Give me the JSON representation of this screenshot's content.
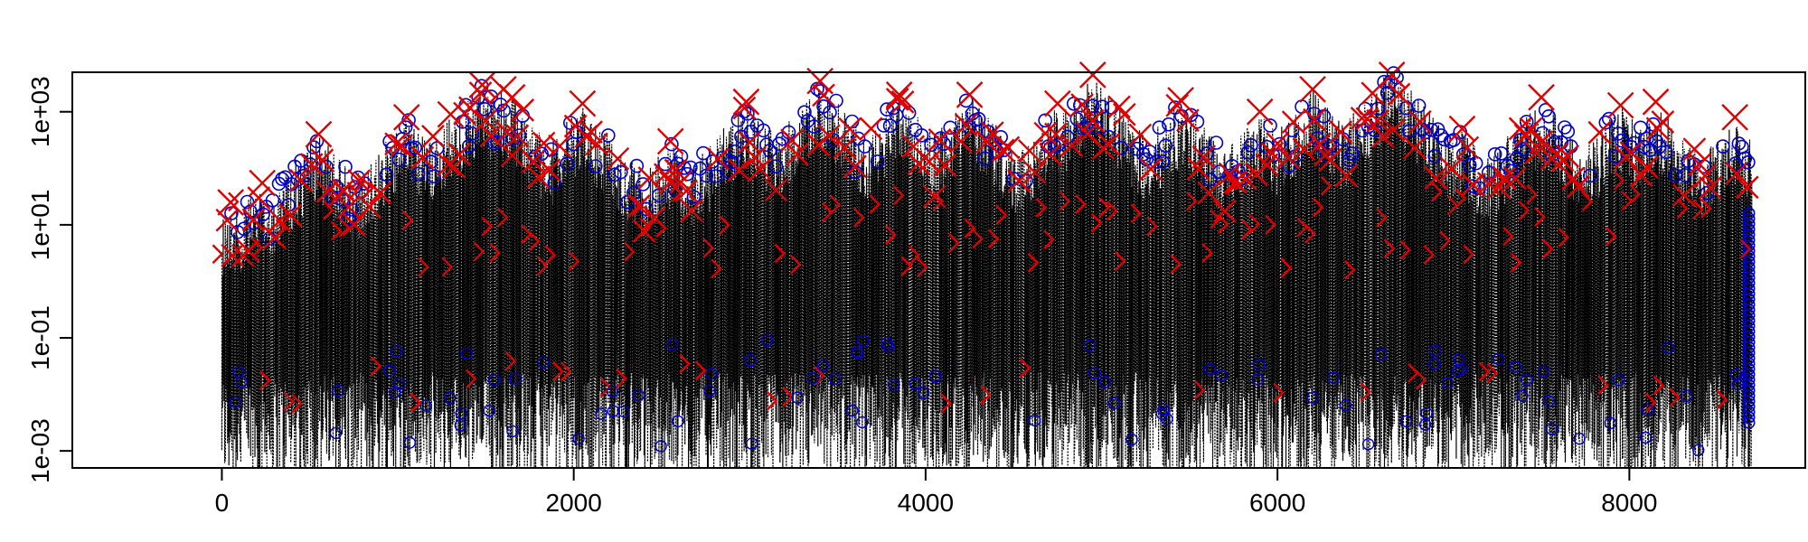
{
  "chart_data": {
    "type": "line",
    "title": "",
    "xlabel": "",
    "ylabel": "",
    "y_scale": "log",
    "xlim": [
      -850,
      9000
    ],
    "ylim": [
      0.0005,
      5000
    ],
    "n_points": 8700,
    "x_ticks": [
      {
        "value": 0,
        "label": "0"
      },
      {
        "value": 2000,
        "label": "2000"
      },
      {
        "value": 4000,
        "label": "4000"
      },
      {
        "value": 6000,
        "label": "6000"
      },
      {
        "value": 8000,
        "label": "8000"
      }
    ],
    "y_ticks": [
      {
        "value": 0.001,
        "label": "1e-03"
      },
      {
        "value": 0.1,
        "label": "1e-01"
      },
      {
        "value": 10,
        "label": "1e+01"
      },
      {
        "value": 1000,
        "label": "1e+03"
      }
    ],
    "grid": false,
    "legend": "none",
    "series": [
      {
        "style": "dotted-line",
        "color": "#000000"
      },
      {
        "style": "circle-markers",
        "color": "#0000cc"
      },
      {
        "style": "cross-markers",
        "color": "#e00000"
      }
    ],
    "peak_markers": [
      {
        "x": 50,
        "y": 25
      },
      {
        "x": 230,
        "y": 55
      },
      {
        "x": 550,
        "y": 400
      },
      {
        "x": 1050,
        "y": 800
      },
      {
        "x": 1300,
        "y": 900
      },
      {
        "x": 1480,
        "y": 3000
      },
      {
        "x": 1600,
        "y": 2500
      },
      {
        "x": 1650,
        "y": 1800
      },
      {
        "x": 2050,
        "y": 1400
      },
      {
        "x": 2550,
        "y": 300
      },
      {
        "x": 2980,
        "y": 1500
      },
      {
        "x": 3400,
        "y": 3500
      },
      {
        "x": 3850,
        "y": 2000
      },
      {
        "x": 4250,
        "y": 2000
      },
      {
        "x": 4750,
        "y": 1400
      },
      {
        "x": 4950,
        "y": 4500
      },
      {
        "x": 5450,
        "y": 1600
      },
      {
        "x": 5900,
        "y": 1000
      },
      {
        "x": 6200,
        "y": 2500
      },
      {
        "x": 6650,
        "y": 6000
      },
      {
        "x": 7050,
        "y": 500
      },
      {
        "x": 7500,
        "y": 1800
      },
      {
        "x": 7950,
        "y": 1300
      },
      {
        "x": 8150,
        "y": 1500
      },
      {
        "x": 8600,
        "y": 800
      }
    ]
  }
}
